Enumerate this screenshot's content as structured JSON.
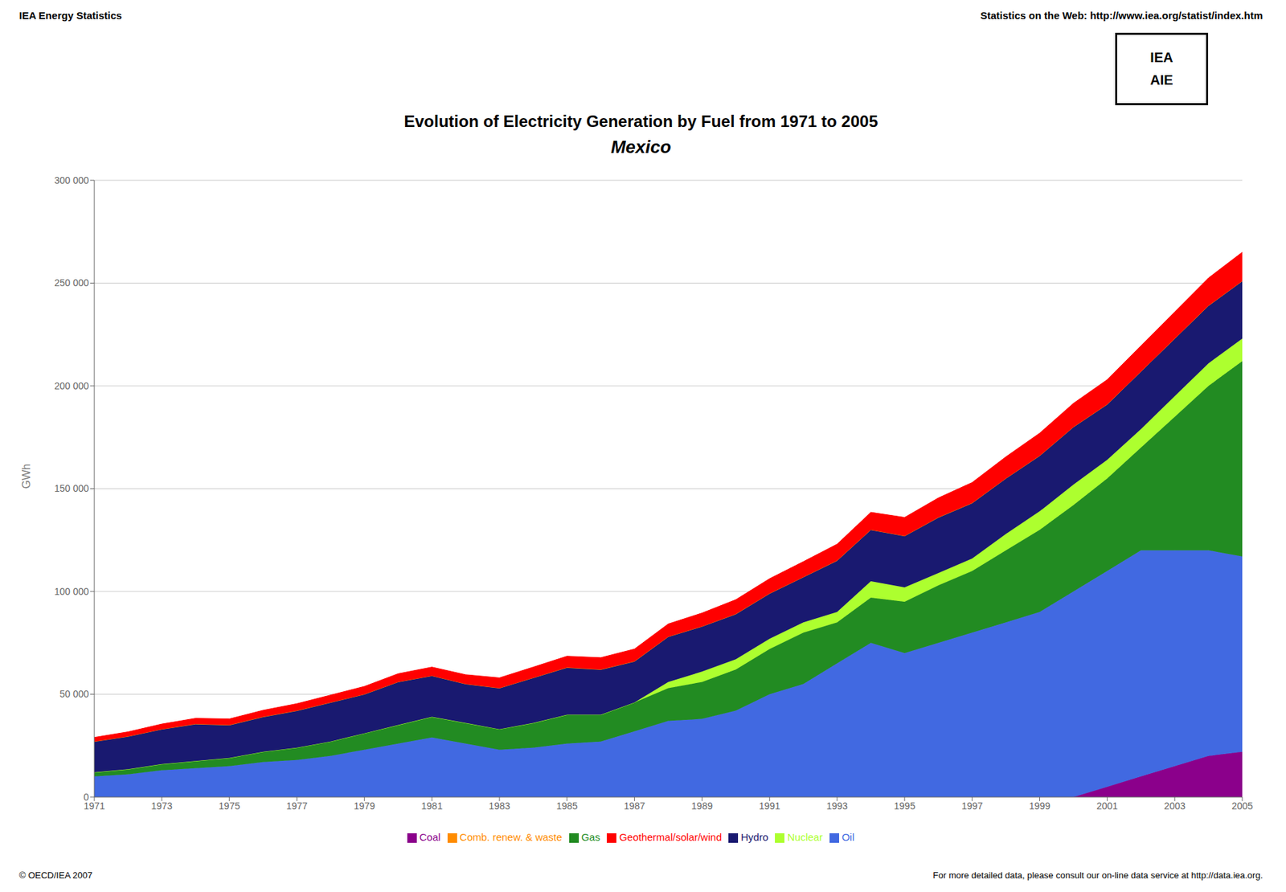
{
  "chart_data": {
    "type": "area",
    "stacked": true,
    "title": "Evolution of Electricity Generation by Fuel from 1971 to 2005",
    "subtitle": "Mexico",
    "ylabel": "GWh",
    "annotations": [
      "IEA Energy Statistics",
      "Statistics on the Web: http://www.iea.org/statist/index.htm",
      "© OECD/IEA 2007",
      "For more detailed data, please consult our on-line data service at http://data.iea.org.",
      "IEA",
      "AIE"
    ],
    "x": [
      1971,
      1972,
      1973,
      1974,
      1975,
      1976,
      1977,
      1978,
      1979,
      1980,
      1981,
      1982,
      1983,
      1984,
      1985,
      1986,
      1987,
      1988,
      1989,
      1990,
      1991,
      1992,
      1993,
      1994,
      1995,
      1996,
      1997,
      1998,
      1999,
      2000,
      2001,
      2002,
      2003,
      2004,
      2005
    ],
    "series": [
      {
        "name": "Coal",
        "color": "#8B008B",
        "values": [
          0,
          0,
          0,
          0,
          0,
          0,
          0,
          0,
          0,
          0,
          0,
          0,
          0,
          0,
          0,
          0,
          0,
          0,
          0,
          0,
          0,
          0,
          0,
          0,
          0,
          0,
          0,
          0,
          0,
          0,
          5000,
          10000,
          15000,
          20000,
          22000
        ]
      },
      {
        "name": "Oil",
        "color": "#4169E1",
        "values": [
          10000,
          11000,
          13000,
          14000,
          15000,
          17000,
          18000,
          20000,
          23000,
          26000,
          29000,
          26000,
          23000,
          24000,
          26000,
          27000,
          32000,
          37000,
          38000,
          42000,
          50000,
          55000,
          65000,
          75000,
          70000,
          75000,
          80000,
          85000,
          90000,
          100000,
          105000,
          110000,
          105000,
          100000,
          95000
        ]
      },
      {
        "name": "Gas",
        "color": "#228B22",
        "values": [
          2000,
          2500,
          3000,
          3500,
          4000,
          5000,
          6000,
          7000,
          8000,
          9000,
          10000,
          10000,
          10000,
          12000,
          14000,
          13000,
          14000,
          16000,
          18000,
          20000,
          22000,
          25000,
          20000,
          22000,
          25000,
          28000,
          30000,
          35000,
          40000,
          42000,
          45000,
          50000,
          65000,
          80000,
          95000
        ]
      },
      {
        "name": "Nuclear",
        "color": "#ADFF2F",
        "values": [
          0,
          0,
          0,
          0,
          0,
          0,
          0,
          0,
          0,
          0,
          0,
          0,
          0,
          0,
          0,
          0,
          0,
          3000,
          5000,
          5000,
          5000,
          5000,
          5000,
          8000,
          7000,
          6000,
          6000,
          8000,
          9000,
          10000,
          9000,
          9000,
          10000,
          11000,
          11000
        ]
      },
      {
        "name": "Hydro",
        "color": "#191970",
        "values": [
          15000,
          16000,
          17000,
          18000,
          16000,
          17000,
          18000,
          19000,
          19000,
          21000,
          20000,
          19000,
          20000,
          22000,
          23000,
          22000,
          20000,
          22000,
          22000,
          22000,
          22000,
          22000,
          25000,
          25000,
          25000,
          27000,
          27000,
          27000,
          27000,
          28000,
          27000,
          28000,
          28000,
          28000,
          28000
        ]
      },
      {
        "name": "Comb. renew. & waste",
        "color": "#FF8C00",
        "values": [
          0,
          0,
          0,
          0,
          0,
          0,
          0,
          0,
          0,
          0,
          0,
          0,
          0,
          0,
          0,
          0,
          0,
          0,
          0,
          0,
          0,
          0,
          0,
          0,
          0,
          0,
          0,
          0,
          0,
          0,
          0,
          0,
          0,
          0,
          0
        ]
      },
      {
        "name": "Geothermal/solar/wind",
        "color": "#FF0000",
        "values": [
          2000,
          2200,
          2500,
          2800,
          3000,
          3200,
          3400,
          3600,
          3800,
          4000,
          4200,
          4500,
          5000,
          5200,
          5500,
          5800,
          6000,
          6200,
          6500,
          7000,
          7200,
          7500,
          8000,
          8500,
          9000,
          9500,
          10000,
          10500,
          11000,
          11500,
          12000,
          12500,
          13000,
          13500,
          14000
        ]
      }
    ],
    "xlim": [
      1971,
      2005
    ],
    "xticks": [
      1971,
      1973,
      1975,
      1977,
      1979,
      1981,
      1983,
      1985,
      1987,
      1989,
      1991,
      1993,
      1995,
      1997,
      1999,
      2001,
      2003,
      2005
    ],
    "ylim": [
      0,
      300000
    ],
    "yticks": [
      0,
      {
        "value": 50000,
        "label": "50 000"
      },
      {
        "value": 100000,
        "label": "100 000"
      },
      {
        "value": 150000,
        "label": "150 000"
      },
      {
        "value": 200000,
        "label": "200 000"
      },
      {
        "value": 250000,
        "label": "250 000"
      },
      {
        "value": 300000,
        "label": "300 000"
      }
    ],
    "grid": true,
    "legend": "bottom"
  }
}
